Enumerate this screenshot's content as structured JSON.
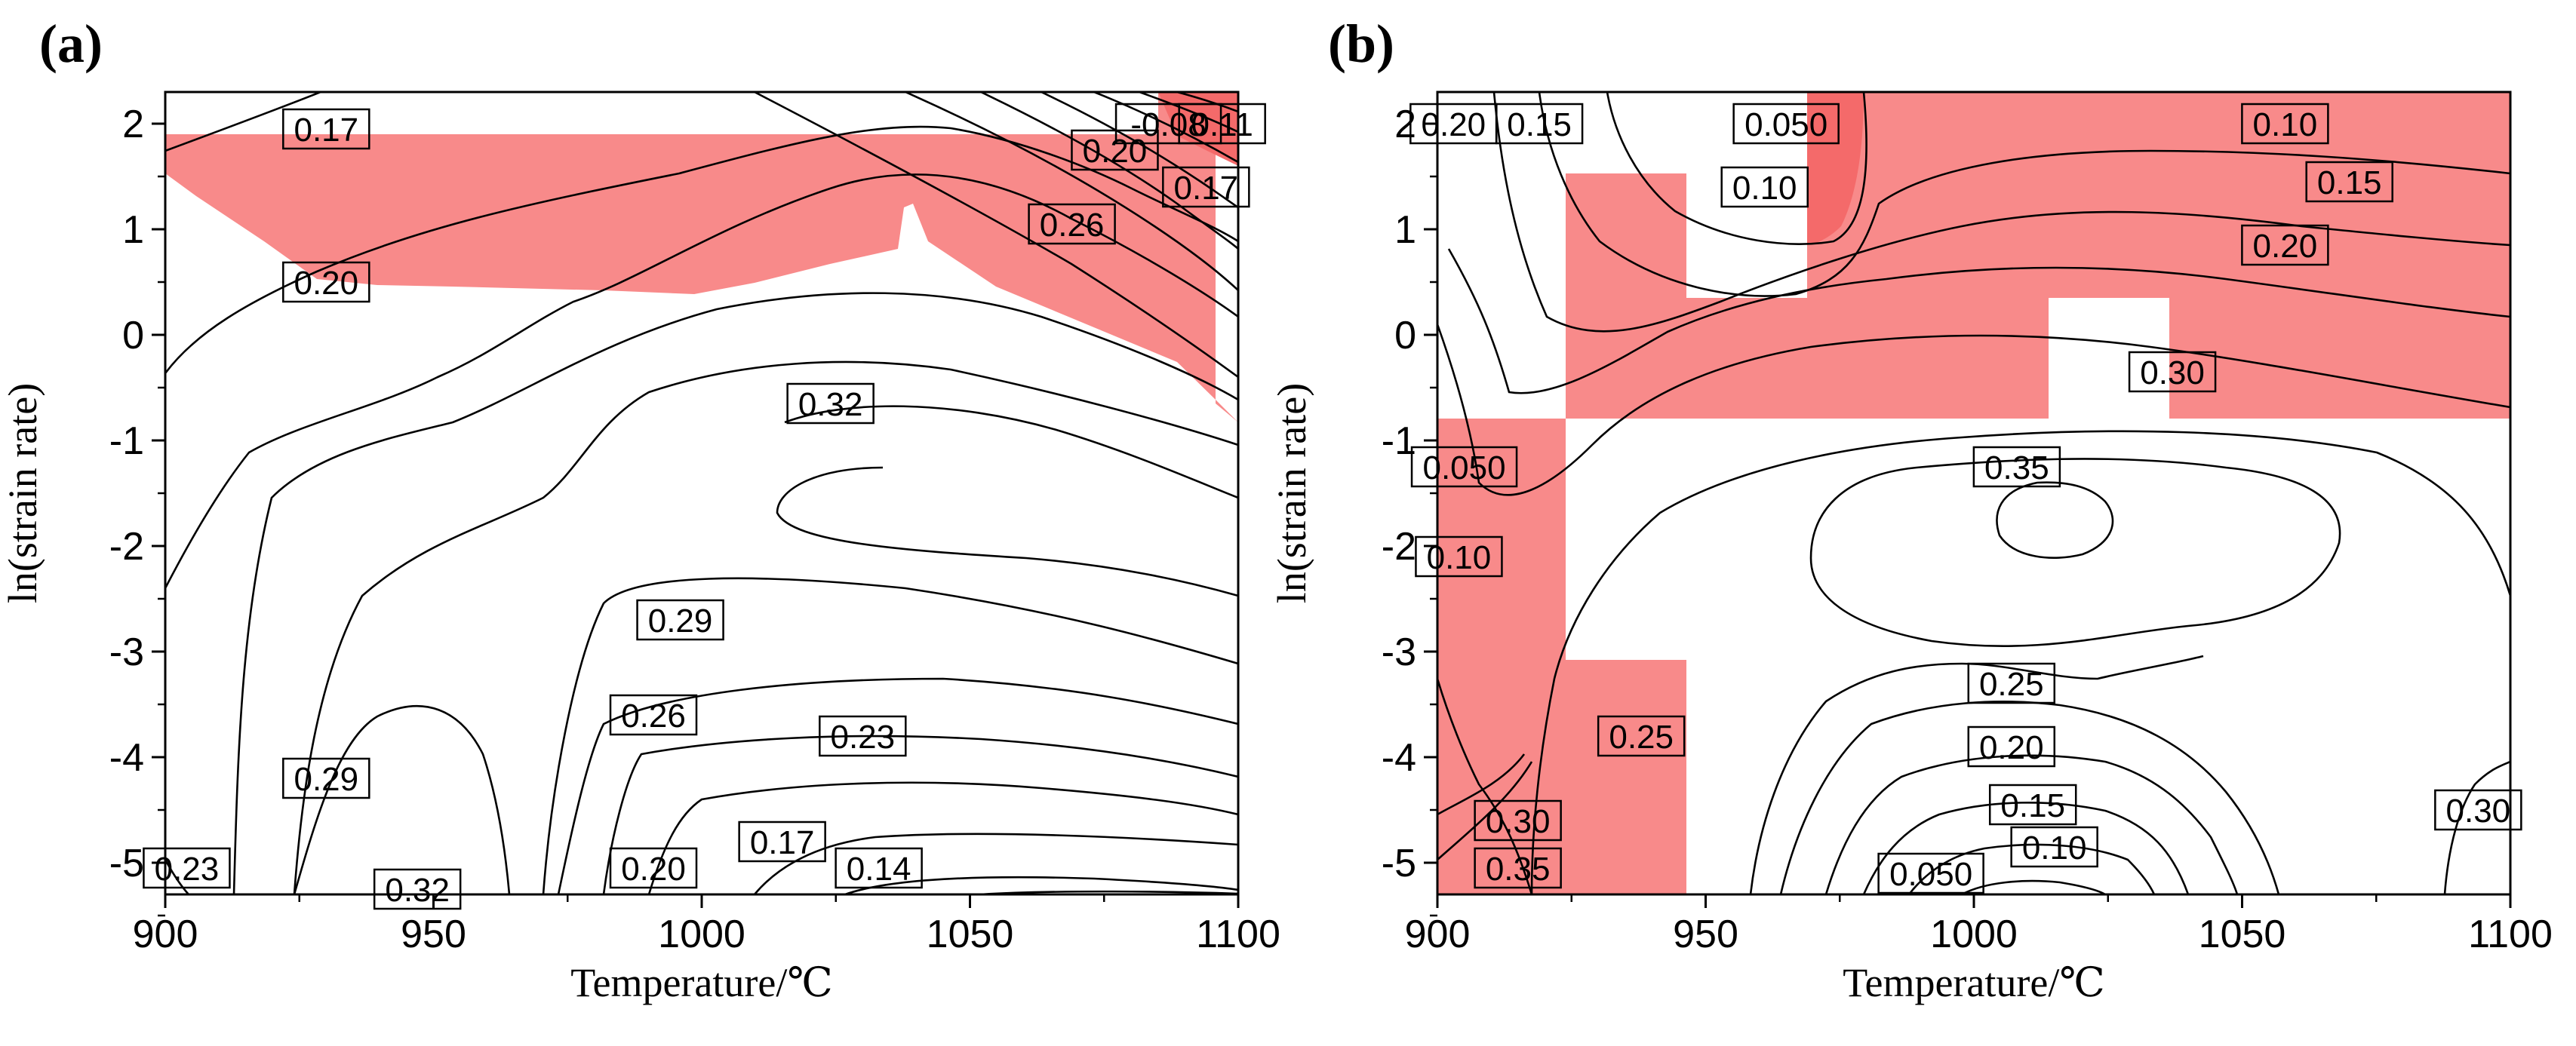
{
  "chart_data": [
    {
      "type": "contour",
      "panel_label": "(a)",
      "xlabel": "Temperature/℃",
      "ylabel": "ln(strain rate)",
      "xlim": [
        900,
        1100
      ],
      "ylim": [
        -5.3,
        2.3
      ],
      "x_ticks": [
        900,
        950,
        1000,
        1050,
        1100
      ],
      "y_ticks": [
        2,
        1,
        0,
        -1,
        -2,
        -3,
        -4,
        -5
      ],
      "shaded_region_color": "#f88a8a",
      "contour_labels": [
        {
          "text": "0.17",
          "x": 930,
          "y": 1.95
        },
        {
          "text": "0.20",
          "x": 930,
          "y": 0.5
        },
        {
          "text": "0.32",
          "x": 1024,
          "y": -0.65
        },
        {
          "text": "0.29",
          "x": 996,
          "y": -2.7
        },
        {
          "text": "0.26",
          "x": 991,
          "y": -3.6
        },
        {
          "text": "0.23",
          "x": 1030,
          "y": -3.8
        },
        {
          "text": "0.29",
          "x": 930,
          "y": -4.2
        },
        {
          "text": "0.23",
          "x": 904,
          "y": -5.05
        },
        {
          "text": "0.32",
          "x": 947,
          "y": -5.25
        },
        {
          "text": "0.20",
          "x": 991,
          "y": -5.05
        },
        {
          "text": "0.17",
          "x": 1015,
          "y": -4.8
        },
        {
          "text": "0.14",
          "x": 1033,
          "y": -5.05
        },
        {
          "text": "0.26",
          "x": 1069,
          "y": 1.05
        },
        {
          "text": "0.20",
          "x": 1077,
          "y": 1.75
        },
        {
          "text": "0.17",
          "x": 1094,
          "y": 1.4
        },
        {
          "text": "-0.08",
          "x": 1087,
          "y": 2.0
        },
        {
          "text": "0.11",
          "x": 1097,
          "y": 2.0
        }
      ]
    },
    {
      "type": "contour",
      "panel_label": "(b)",
      "xlabel": "Temperature/℃",
      "ylabel": "ln(strain rate)",
      "xlim": [
        900,
        1100
      ],
      "ylim": [
        -5.3,
        2.3
      ],
      "x_ticks": [
        900,
        950,
        1000,
        1050,
        1100
      ],
      "y_ticks": [
        2,
        1,
        0,
        -1,
        -2,
        -3,
        -4,
        -5
      ],
      "shaded_region_color": "#f88a8a",
      "contour_labels": [
        {
          "text": "0.20",
          "x": 903,
          "y": 2.0
        },
        {
          "text": "0.15",
          "x": 919,
          "y": 2.0
        },
        {
          "text": "0.050",
          "x": 965,
          "y": 2.0
        },
        {
          "text": "0.10",
          "x": 961,
          "y": 1.4
        },
        {
          "text": "0.10",
          "x": 1058,
          "y": 2.0
        },
        {
          "text": "0.15",
          "x": 1070,
          "y": 1.45
        },
        {
          "text": "0.20",
          "x": 1058,
          "y": 0.85
        },
        {
          "text": "0.30",
          "x": 1037,
          "y": -0.35
        },
        {
          "text": "0.35",
          "x": 1008,
          "y": -1.25
        },
        {
          "text": "0.050",
          "x": 905,
          "y": -1.25
        },
        {
          "text": "0.10",
          "x": 904,
          "y": -2.1
        },
        {
          "text": "0.25",
          "x": 938,
          "y": -3.8
        },
        {
          "text": "0.25",
          "x": 1007,
          "y": -3.3
        },
        {
          "text": "0.20",
          "x": 1007,
          "y": -3.9
        },
        {
          "text": "0.15",
          "x": 1011,
          "y": -4.45
        },
        {
          "text": "0.10",
          "x": 1015,
          "y": -4.85
        },
        {
          "text": "0.050",
          "x": 992,
          "y": -5.1
        },
        {
          "text": "0.30",
          "x": 915,
          "y": -4.6
        },
        {
          "text": "0.35",
          "x": 915,
          "y": -5.05
        },
        {
          "text": "0.30",
          "x": 1094,
          "y": -4.5
        }
      ]
    }
  ]
}
